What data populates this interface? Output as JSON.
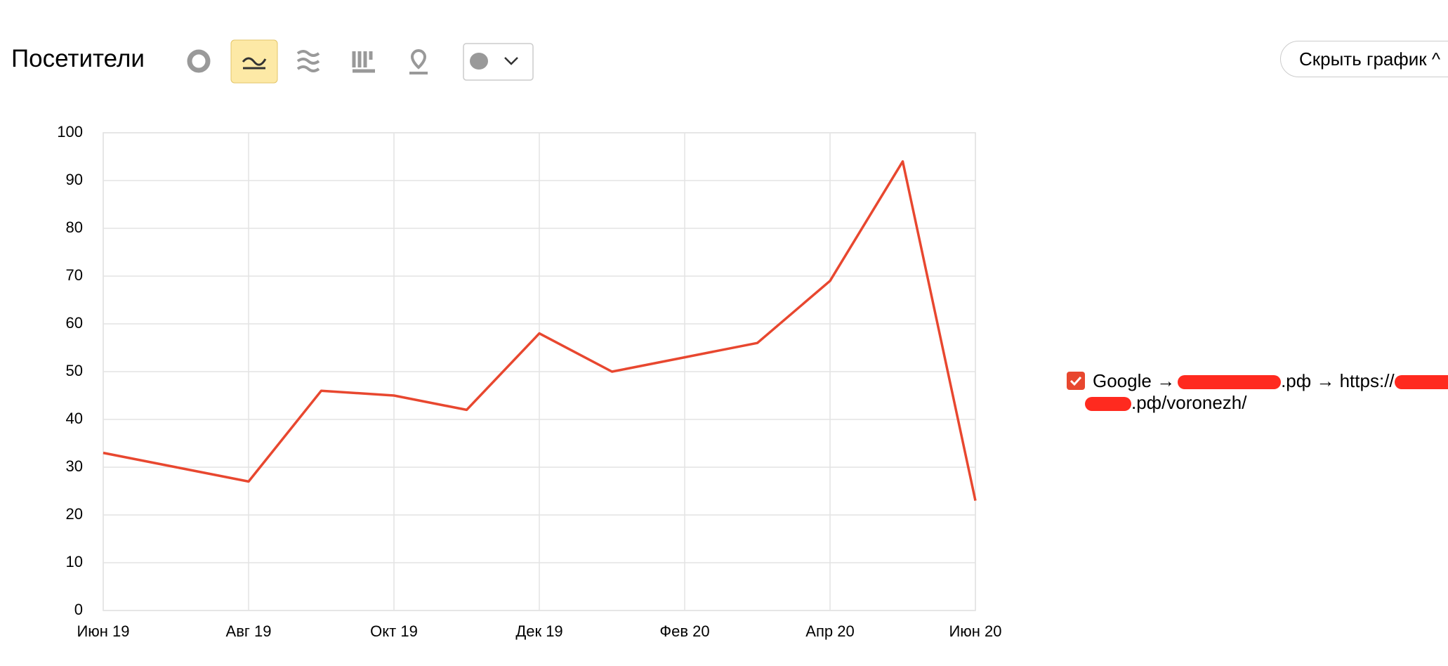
{
  "header": {
    "title": "Посетители",
    "hide_button": "Скрыть график"
  },
  "chart_data": {
    "type": "line",
    "categories": [
      "Июн 19",
      null,
      "Авг 19",
      null,
      "Окт 19",
      null,
      "Дек 19",
      null,
      "Фев 20",
      null,
      "Апр 20",
      null,
      "Июн 20"
    ],
    "series": [
      {
        "color": "#e8472f",
        "values": [
          33,
          30,
          27,
          46,
          45,
          42,
          58,
          50,
          53,
          56,
          69,
          94,
          23
        ]
      }
    ],
    "legend": [
      "Google →",
      ".рф → https://",
      ".рф/voronezh/"
    ],
    "ylim": [
      0,
      100
    ],
    "yticks": [
      0,
      10,
      20,
      30,
      40,
      50,
      60,
      70,
      80,
      90,
      100
    ],
    "grid": true
  }
}
